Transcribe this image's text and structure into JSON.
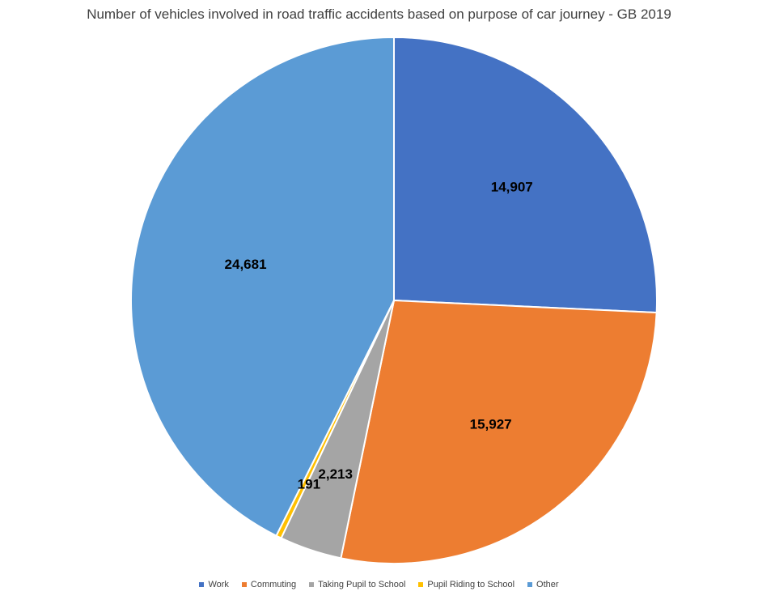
{
  "chart_data": {
    "type": "pie",
    "title": "Number of vehicles involved in road traffic accidents based on purpose of car journey - GB 2019",
    "categories": [
      "Work",
      "Commuting",
      "Taking Pupil to School",
      "Pupil Riding to School",
      "Other"
    ],
    "values": [
      14907,
      15927,
      2213,
      191,
      24681
    ],
    "data_labels": [
      "14,907",
      "15,927",
      "2,213",
      "191",
      "24,681"
    ],
    "colors": [
      "#4472C4",
      "#ED7D31",
      "#A5A5A5",
      "#FFC000",
      "#5B9BD5"
    ],
    "legend_position": "bottom",
    "start_angle_deg": 0,
    "direction": "clockwise"
  }
}
